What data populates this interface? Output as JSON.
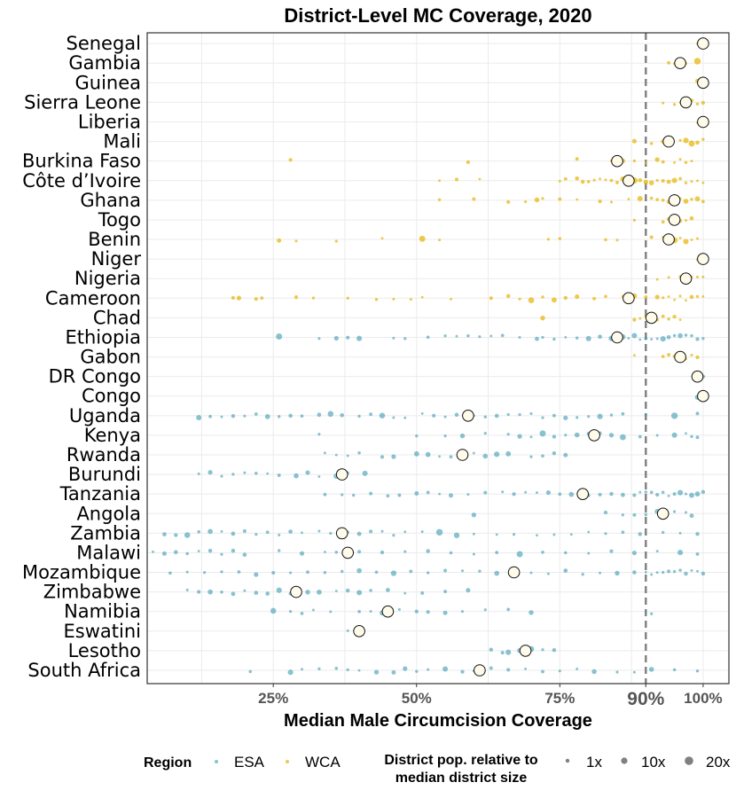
{
  "chart_data": {
    "type": "scatter",
    "title": "District-Level MC Coverage, 2020",
    "xlabel": "Median Male Circumcision Coverage",
    "xlim": [
      0.03,
      1.045
    ],
    "x_ticks": [
      {
        "value": 0.25,
        "label": "25%"
      },
      {
        "value": 0.5,
        "label": "50%"
      },
      {
        "value": 0.75,
        "label": "75%"
      },
      {
        "value": 0.9,
        "label": "90%"
      },
      {
        "value": 1.0,
        "label": "100%"
      }
    ],
    "reference_line": {
      "value": 0.9,
      "style": "dashed",
      "color": "#7f7f7f"
    },
    "region_colors": {
      "ESA": "#3a9ab2",
      "WCA": "#e6b400"
    },
    "countries": [
      {
        "name": "Senegal",
        "region": "WCA",
        "median": 1.0,
        "districts": [
          0.99,
          1.0,
          1.0
        ]
      },
      {
        "name": "Gambia",
        "region": "WCA",
        "median": 0.96,
        "districts": [
          0.94,
          0.95,
          0.96,
          0.97,
          0.99
        ]
      },
      {
        "name": "Guinea",
        "region": "WCA",
        "median": 1.0,
        "districts": [
          0.99,
          1.0
        ]
      },
      {
        "name": "Sierra Leone",
        "region": "WCA",
        "median": 0.97,
        "districts": [
          0.93,
          0.95,
          0.96,
          0.97,
          0.98,
          0.99,
          1.0
        ]
      },
      {
        "name": "Liberia",
        "region": "WCA",
        "median": 1.0,
        "districts": [
          0.99,
          1.0
        ]
      },
      {
        "name": "Mali",
        "region": "WCA",
        "median": 0.94,
        "districts": [
          0.88,
          0.91,
          0.93,
          0.94,
          0.96,
          0.97,
          0.98,
          0.99,
          1.0
        ]
      },
      {
        "name": "Burkina Faso",
        "region": "WCA",
        "median": 0.85,
        "districts": [
          0.28,
          0.59,
          0.78,
          0.84,
          0.86,
          0.88,
          0.9,
          0.92,
          0.93,
          0.95,
          0.96,
          0.97,
          0.98
        ]
      },
      {
        "name": "Côte d’Ivoire",
        "region": "WCA",
        "median": 0.87,
        "districts": [
          0.54,
          0.57,
          0.61,
          0.75,
          0.76,
          0.78,
          0.79,
          0.8,
          0.81,
          0.82,
          0.83,
          0.84,
          0.85,
          0.86,
          0.87,
          0.88,
          0.89,
          0.9,
          0.91,
          0.92,
          0.93,
          0.94,
          0.95,
          0.96,
          0.97,
          0.98,
          0.99,
          1.0
        ]
      },
      {
        "name": "Ghana",
        "region": "WCA",
        "median": 0.95,
        "districts": [
          0.54,
          0.6,
          0.66,
          0.69,
          0.71,
          0.72,
          0.75,
          0.78,
          0.82,
          0.84,
          0.87,
          0.89,
          0.91,
          0.92,
          0.93,
          0.94,
          0.95,
          0.96,
          0.97,
          0.98,
          0.99,
          1.0
        ]
      },
      {
        "name": "Togo",
        "region": "WCA",
        "median": 0.95,
        "districts": [
          0.88,
          0.93,
          0.94,
          0.95,
          0.96,
          0.97,
          0.98
        ]
      },
      {
        "name": "Benin",
        "region": "WCA",
        "median": 0.94,
        "districts": [
          0.26,
          0.29,
          0.36,
          0.44,
          0.51,
          0.54,
          0.73,
          0.75,
          0.83,
          0.85,
          0.91,
          0.93,
          0.94,
          0.95,
          0.96,
          0.97,
          0.98,
          0.99
        ]
      },
      {
        "name": "Niger",
        "region": "WCA",
        "median": 1.0,
        "districts": [
          0.99,
          1.0
        ]
      },
      {
        "name": "Nigeria",
        "region": "WCA",
        "median": 0.97,
        "districts": [
          0.92,
          0.94,
          0.96,
          0.97,
          0.98,
          0.99,
          1.0
        ]
      },
      {
        "name": "Cameroon",
        "region": "WCA",
        "median": 0.87,
        "districts": [
          0.18,
          0.19,
          0.22,
          0.23,
          0.29,
          0.32,
          0.38,
          0.43,
          0.46,
          0.49,
          0.51,
          0.56,
          0.63,
          0.66,
          0.68,
          0.7,
          0.72,
          0.74,
          0.76,
          0.78,
          0.81,
          0.83,
          0.86,
          0.88,
          0.9,
          0.92,
          0.93,
          0.94,
          0.95,
          0.96,
          0.97,
          0.98,
          0.99,
          1.0
        ]
      },
      {
        "name": "Chad",
        "region": "WCA",
        "median": 0.91,
        "districts": [
          0.72,
          0.88,
          0.89,
          0.9,
          0.91,
          0.92,
          0.93,
          0.94,
          0.95,
          0.96
        ]
      },
      {
        "name": "Ethiopia",
        "region": "ESA",
        "median": 0.85,
        "districts": [
          0.26,
          0.33,
          0.36,
          0.38,
          0.4,
          0.46,
          0.48,
          0.52,
          0.55,
          0.57,
          0.59,
          0.61,
          0.63,
          0.65,
          0.68,
          0.71,
          0.72,
          0.74,
          0.76,
          0.78,
          0.8,
          0.82,
          0.84,
          0.86,
          0.87,
          0.88,
          0.89,
          0.9,
          0.91,
          0.92,
          0.93,
          0.94,
          0.95,
          0.96,
          0.97,
          0.98,
          0.99,
          1.0
        ]
      },
      {
        "name": "Gabon",
        "region": "WCA",
        "median": 0.96,
        "districts": [
          0.88,
          0.93,
          0.94,
          0.95,
          0.96,
          0.97,
          0.98,
          0.99
        ]
      },
      {
        "name": "DR Congo",
        "region": "ESA",
        "median": 0.99,
        "districts": [
          0.99,
          1.0
        ]
      },
      {
        "name": "Congo",
        "region": "ESA",
        "median": 1.0,
        "districts": [
          0.99,
          1.0
        ]
      },
      {
        "name": "Uganda",
        "region": "ESA",
        "median": 0.59,
        "districts": [
          0.12,
          0.14,
          0.16,
          0.18,
          0.2,
          0.22,
          0.24,
          0.26,
          0.28,
          0.3,
          0.33,
          0.35,
          0.37,
          0.4,
          0.42,
          0.44,
          0.46,
          0.48,
          0.51,
          0.53,
          0.55,
          0.57,
          0.6,
          0.62,
          0.64,
          0.66,
          0.68,
          0.7,
          0.72,
          0.74,
          0.76,
          0.78,
          0.8,
          0.82,
          0.84,
          0.86,
          0.9,
          0.95,
          0.99
        ]
      },
      {
        "name": "Kenya",
        "region": "ESA",
        "median": 0.81,
        "districts": [
          0.33,
          0.5,
          0.55,
          0.58,
          0.62,
          0.66,
          0.68,
          0.7,
          0.72,
          0.74,
          0.76,
          0.78,
          0.8,
          0.82,
          0.84,
          0.86,
          0.89,
          0.92,
          0.95,
          0.97,
          0.98,
          0.99
        ]
      },
      {
        "name": "Rwanda",
        "region": "ESA",
        "median": 0.58,
        "districts": [
          0.34,
          0.36,
          0.38,
          0.4,
          0.44,
          0.46,
          0.5,
          0.52,
          0.54,
          0.56,
          0.6,
          0.62,
          0.64,
          0.66,
          0.7,
          0.72,
          0.74,
          0.76
        ]
      },
      {
        "name": "Burundi",
        "region": "ESA",
        "median": 0.37,
        "districts": [
          0.12,
          0.14,
          0.16,
          0.18,
          0.2,
          0.22,
          0.24,
          0.26,
          0.29,
          0.31,
          0.33,
          0.36,
          0.38,
          0.41
        ]
      },
      {
        "name": "Tanzania",
        "region": "ESA",
        "median": 0.79,
        "districts": [
          0.34,
          0.37,
          0.39,
          0.42,
          0.45,
          0.47,
          0.5,
          0.52,
          0.54,
          0.56,
          0.59,
          0.62,
          0.65,
          0.67,
          0.69,
          0.71,
          0.73,
          0.75,
          0.77,
          0.8,
          0.82,
          0.84,
          0.86,
          0.88,
          0.89,
          0.9,
          0.91,
          0.92,
          0.93,
          0.94,
          0.95,
          0.96,
          0.97,
          0.98,
          0.99,
          1.0
        ]
      },
      {
        "name": "Angola",
        "region": "ESA",
        "median": 0.93,
        "districts": [
          0.6,
          0.83,
          0.86,
          0.88,
          0.9,
          0.92,
          0.95,
          0.97,
          0.98
        ]
      },
      {
        "name": "Zambia",
        "region": "ESA",
        "median": 0.37,
        "districts": [
          0.06,
          0.08,
          0.1,
          0.12,
          0.14,
          0.16,
          0.18,
          0.2,
          0.22,
          0.24,
          0.26,
          0.28,
          0.3,
          0.33,
          0.35,
          0.38,
          0.4,
          0.42,
          0.44,
          0.46,
          0.48,
          0.51,
          0.54,
          0.57,
          0.6,
          0.64,
          0.67,
          0.71,
          0.74,
          0.77,
          0.8,
          0.83,
          0.86,
          0.89,
          0.93,
          0.96,
          0.99
        ]
      },
      {
        "name": "Malawi",
        "region": "ESA",
        "median": 0.38,
        "districts": [
          0.04,
          0.06,
          0.08,
          0.1,
          0.12,
          0.14,
          0.16,
          0.18,
          0.2,
          0.26,
          0.3,
          0.34,
          0.36,
          0.4,
          0.44,
          0.48,
          0.52,
          0.56,
          0.6,
          0.64,
          0.68,
          0.72,
          0.76,
          0.8,
          0.84,
          0.88,
          0.92,
          0.96,
          0.99
        ]
      },
      {
        "name": "Mozambique",
        "region": "ESA",
        "median": 0.67,
        "districts": [
          0.07,
          0.1,
          0.13,
          0.16,
          0.19,
          0.22,
          0.25,
          0.28,
          0.31,
          0.34,
          0.37,
          0.4,
          0.43,
          0.46,
          0.49,
          0.52,
          0.55,
          0.58,
          0.61,
          0.64,
          0.67,
          0.7,
          0.73,
          0.76,
          0.79,
          0.82,
          0.85,
          0.88,
          0.9,
          0.91,
          0.92,
          0.93,
          0.94,
          0.95,
          0.96,
          0.97,
          0.98,
          0.99,
          1.0
        ]
      },
      {
        "name": "Zimbabwe",
        "region": "ESA",
        "median": 0.29,
        "districts": [
          0.1,
          0.12,
          0.14,
          0.16,
          0.18,
          0.2,
          0.22,
          0.24,
          0.26,
          0.28,
          0.31,
          0.33,
          0.36,
          0.38,
          0.4,
          0.42,
          0.45,
          0.48,
          0.51,
          0.55,
          0.59
        ]
      },
      {
        "name": "Namibia",
        "region": "ESA",
        "median": 0.45,
        "districts": [
          0.25,
          0.28,
          0.3,
          0.32,
          0.35,
          0.4,
          0.42,
          0.44,
          0.47,
          0.5,
          0.52,
          0.55,
          0.58,
          0.62,
          0.66,
          0.7,
          0.9,
          0.91
        ]
      },
      {
        "name": "Eswatini",
        "region": "ESA",
        "median": 0.4,
        "districts": [
          0.38
        ]
      },
      {
        "name": "Lesotho",
        "region": "ESA",
        "median": 0.69,
        "districts": [
          0.63,
          0.65,
          0.66,
          0.68,
          0.7,
          0.72,
          0.74
        ]
      },
      {
        "name": "South Africa",
        "region": "ESA",
        "median": 0.61,
        "districts": [
          0.21,
          0.28,
          0.3,
          0.33,
          0.36,
          0.38,
          0.4,
          0.43,
          0.46,
          0.48,
          0.5,
          0.52,
          0.55,
          0.58,
          0.6,
          0.63,
          0.66,
          0.69,
          0.72,
          0.75,
          0.78,
          0.81,
          0.85,
          0.88,
          0.91,
          0.95,
          0.99
        ]
      }
    ],
    "legend": {
      "region_title": "Region",
      "region_items": [
        {
          "label": "ESA",
          "color": "#3a9ab2"
        },
        {
          "label": "WCA",
          "color": "#e6b400"
        }
      ],
      "size_title_line1": "District pop. relative to",
      "size_title_line2": "median district size",
      "size_items": [
        {
          "label": "1x",
          "relative_size": 1
        },
        {
          "label": "10x",
          "relative_size": 10
        },
        {
          "label": "20x",
          "relative_size": 20
        }
      ],
      "position": "bottom"
    }
  }
}
